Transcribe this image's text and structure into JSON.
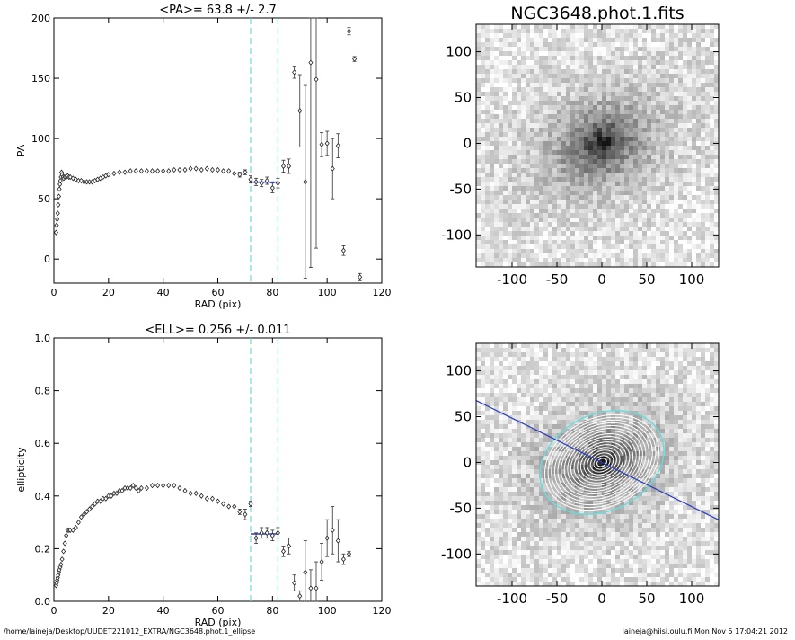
{
  "footer": {
    "left": "/home/laineja/Desktop/UUDET221012_EXTRA/NGC3648.phot.1_ellipse",
    "right": "laineja@hiisi.oulu.fi  Mon Nov  5 17:04:21 2012"
  },
  "chart_data": [
    {
      "type": "scatter",
      "title": "<PA>=  63.8 +/-   2.7",
      "xlabel": "RAD (pix)",
      "ylabel": "PA",
      "xlim": [
        0,
        120
      ],
      "ylim": [
        -20,
        200
      ],
      "xticks": [
        0,
        20,
        40,
        60,
        80,
        100,
        120
      ],
      "yticks": [
        0,
        50,
        100,
        150,
        200
      ],
      "vlines": [
        72,
        82
      ],
      "fit": {
        "x0": 72,
        "x1": 82,
        "y": 63.8
      },
      "points": [
        [
          0.8,
          22,
          0
        ],
        [
          1.0,
          28,
          0
        ],
        [
          1.2,
          33,
          0
        ],
        [
          1.4,
          38,
          0
        ],
        [
          1.6,
          45,
          0
        ],
        [
          1.8,
          52,
          0
        ],
        [
          2.0,
          58,
          0
        ],
        [
          2.2,
          62,
          0
        ],
        [
          2.4,
          65,
          0
        ],
        [
          2.6,
          68,
          0
        ],
        [
          2.8,
          72,
          0
        ],
        [
          3.0,
          70,
          0
        ],
        [
          3.3,
          68,
          0
        ],
        [
          3.6,
          67,
          0
        ],
        [
          4.0,
          68,
          0
        ],
        [
          4.5,
          68,
          0
        ],
        [
          5.0,
          69,
          0
        ],
        [
          5.5,
          68,
          0
        ],
        [
          6.0,
          68,
          0
        ],
        [
          7,
          67,
          0
        ],
        [
          8,
          66,
          0
        ],
        [
          9,
          65,
          0
        ],
        [
          10,
          65,
          0
        ],
        [
          11,
          64,
          0
        ],
        [
          12,
          64,
          0
        ],
        [
          13,
          64,
          0
        ],
        [
          14,
          64,
          0
        ],
        [
          15,
          65,
          0
        ],
        [
          16,
          66,
          0
        ],
        [
          17,
          67,
          0
        ],
        [
          18,
          68,
          0
        ],
        [
          19,
          69,
          0
        ],
        [
          20,
          70,
          0
        ],
        [
          22,
          71,
          0
        ],
        [
          24,
          72,
          0
        ],
        [
          26,
          72,
          0
        ],
        [
          28,
          73,
          0
        ],
        [
          30,
          73,
          0
        ],
        [
          32,
          73,
          0
        ],
        [
          34,
          73,
          0
        ],
        [
          36,
          73,
          0
        ],
        [
          38,
          73,
          0
        ],
        [
          40,
          73,
          0
        ],
        [
          42,
          73,
          0
        ],
        [
          44,
          74,
          0
        ],
        [
          46,
          74,
          0
        ],
        [
          48,
          74,
          0
        ],
        [
          50,
          75,
          0
        ],
        [
          52,
          75,
          0
        ],
        [
          54,
          74,
          0
        ],
        [
          56,
          75,
          0
        ],
        [
          58,
          74,
          0
        ],
        [
          60,
          74,
          0
        ],
        [
          62,
          73,
          0
        ],
        [
          64,
          73,
          0
        ],
        [
          66,
          71,
          0
        ],
        [
          68,
          70,
          2
        ],
        [
          70,
          72,
          2
        ],
        [
          72,
          66,
          3
        ],
        [
          74,
          64,
          3
        ],
        [
          76,
          63,
          3
        ],
        [
          78,
          65,
          3
        ],
        [
          80,
          59,
          4
        ],
        [
          82,
          63,
          4
        ],
        [
          84,
          77,
          5
        ],
        [
          86,
          77,
          6
        ],
        [
          88,
          155,
          5
        ],
        [
          90,
          123,
          30
        ],
        [
          92,
          64,
          80
        ],
        [
          94,
          163,
          170
        ],
        [
          96,
          149,
          140
        ],
        [
          98,
          95,
          10
        ],
        [
          100,
          96,
          10
        ],
        [
          102,
          75,
          25
        ],
        [
          104,
          94,
          10
        ],
        [
          106,
          7,
          4
        ],
        [
          108,
          189,
          3
        ],
        [
          110,
          166,
          2
        ],
        [
          112,
          -15,
          3
        ]
      ]
    },
    {
      "type": "scatter",
      "title": "<ELL>= 0.256 +/-  0.011",
      "xlabel": "RAD (pix)",
      "ylabel": "ellipticity",
      "xlim": [
        0,
        120
      ],
      "ylim": [
        0,
        1
      ],
      "xticks": [
        0,
        20,
        40,
        60,
        80,
        100,
        120
      ],
      "yticks": [
        "0.0",
        "0.2",
        "0.4",
        "0.6",
        "0.8",
        "1.0"
      ],
      "vlines": [
        72,
        82
      ],
      "fit": {
        "x0": 72,
        "x1": 82,
        "y": 0.256
      },
      "points": [
        [
          0.8,
          0.06,
          0
        ],
        [
          1.0,
          0.07,
          0
        ],
        [
          1.2,
          0.08,
          0
        ],
        [
          1.4,
          0.09,
          0
        ],
        [
          1.6,
          0.1,
          0
        ],
        [
          1.8,
          0.11,
          0
        ],
        [
          2.0,
          0.12,
          0
        ],
        [
          2.3,
          0.13,
          0
        ],
        [
          2.6,
          0.14,
          0
        ],
        [
          3.0,
          0.16,
          0
        ],
        [
          3.5,
          0.19,
          0
        ],
        [
          4.0,
          0.22,
          0
        ],
        [
          4.5,
          0.25,
          0
        ],
        [
          5.0,
          0.27,
          0
        ],
        [
          5.5,
          0.27,
          0
        ],
        [
          6,
          0.27,
          0
        ],
        [
          7,
          0.27,
          0
        ],
        [
          8,
          0.28,
          0
        ],
        [
          9,
          0.3,
          0
        ],
        [
          10,
          0.32,
          0
        ],
        [
          11,
          0.33,
          0
        ],
        [
          12,
          0.34,
          0
        ],
        [
          13,
          0.35,
          0
        ],
        [
          14,
          0.36,
          0
        ],
        [
          15,
          0.37,
          0
        ],
        [
          16,
          0.38,
          0
        ],
        [
          17,
          0.38,
          0
        ],
        [
          18,
          0.39,
          0
        ],
        [
          19,
          0.39,
          0
        ],
        [
          20,
          0.4,
          0
        ],
        [
          21,
          0.4,
          0
        ],
        [
          22,
          0.41,
          0
        ],
        [
          23,
          0.41,
          0
        ],
        [
          24,
          0.42,
          0
        ],
        [
          25,
          0.42,
          0
        ],
        [
          26,
          0.43,
          0
        ],
        [
          27,
          0.43,
          0
        ],
        [
          28,
          0.43,
          0
        ],
        [
          29,
          0.44,
          0
        ],
        [
          30,
          0.43,
          0
        ],
        [
          31,
          0.42,
          0
        ],
        [
          32,
          0.43,
          0
        ],
        [
          34,
          0.43,
          0
        ],
        [
          36,
          0.44,
          0
        ],
        [
          38,
          0.44,
          0
        ],
        [
          40,
          0.44,
          0
        ],
        [
          42,
          0.44,
          0
        ],
        [
          44,
          0.44,
          0
        ],
        [
          46,
          0.43,
          0
        ],
        [
          48,
          0.42,
          0
        ],
        [
          50,
          0.41,
          0
        ],
        [
          52,
          0.41,
          0
        ],
        [
          54,
          0.4,
          0
        ],
        [
          56,
          0.39,
          0
        ],
        [
          58,
          0.39,
          0
        ],
        [
          60,
          0.38,
          0
        ],
        [
          62,
          0.37,
          0
        ],
        [
          64,
          0.36,
          0
        ],
        [
          66,
          0.36,
          0
        ],
        [
          68,
          0.34,
          0.01
        ],
        [
          70,
          0.33,
          0.02
        ],
        [
          72,
          0.37,
          0.01
        ],
        [
          74,
          0.24,
          0.02
        ],
        [
          76,
          0.26,
          0.02
        ],
        [
          78,
          0.26,
          0.02
        ],
        [
          80,
          0.25,
          0.02
        ],
        [
          82,
          0.26,
          0.02
        ],
        [
          84,
          0.19,
          0.02
        ],
        [
          86,
          0.21,
          0.03
        ],
        [
          88,
          0.07,
          0.03
        ],
        [
          90,
          0.02,
          0.02
        ],
        [
          92,
          0.11,
          0.12
        ],
        [
          94,
          0.05,
          0.07
        ],
        [
          96,
          0.05,
          0.1
        ],
        [
          98,
          0.15,
          0.07
        ],
        [
          100,
          0.24,
          0.07
        ],
        [
          102,
          0.27,
          0.09
        ],
        [
          104,
          0.23,
          0.08
        ],
        [
          106,
          0.16,
          0.02
        ],
        [
          108,
          0.18,
          0.01
        ]
      ]
    },
    {
      "type": "heatmap",
      "title": "NGC3648.phot.1.fits",
      "xlim": [
        -140,
        130
      ],
      "ylim": [
        -135,
        130
      ],
      "xticks": [
        -100,
        -50,
        0,
        50,
        100
      ],
      "yticks": [
        -100,
        -50,
        0,
        50,
        100
      ],
      "overlay": false
    },
    {
      "type": "heatmap",
      "title": "",
      "xlim": [
        -140,
        130
      ],
      "ylim": [
        -135,
        130
      ],
      "xticks": [
        -100,
        -50,
        0,
        50,
        100
      ],
      "yticks": [
        -100,
        -50,
        0,
        50,
        100
      ],
      "overlay": true,
      "pa_deg": 63.8,
      "ellipticity": 0.256,
      "outer_sma": 82,
      "inner_sma": 72
    }
  ],
  "colors": {
    "axis": "#000000",
    "fit_line": "#2a3cc0",
    "guide_line": "#66dddd",
    "marker": "#444444"
  }
}
